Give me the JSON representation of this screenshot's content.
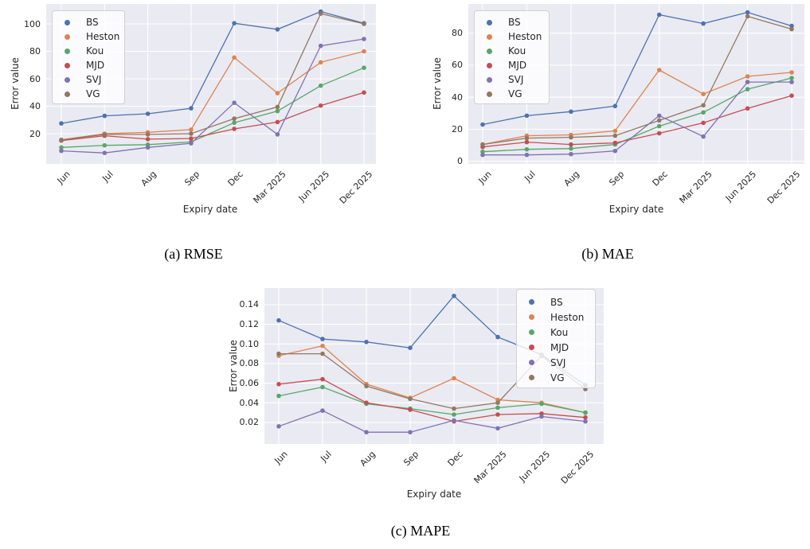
{
  "page": {
    "background_color": "#ffffff",
    "plot_background_color": "#eaeaf2",
    "grid_color": "#ffffff",
    "text_color": "#262626"
  },
  "chart_data": [
    {
      "id": "a",
      "type": "line",
      "caption": "(a) RMSE",
      "xlabel": "Expiry date",
      "ylabel": "Error value",
      "grid": true,
      "legend_position": "top-left",
      "categories": [
        "Jun",
        "Jul",
        "Aug",
        "Sep",
        "Dec",
        "Mar 2025",
        "Jun 2025",
        "Dec 2025"
      ],
      "yticks": [
        20,
        40,
        60,
        80,
        100
      ],
      "ytick_labels": [
        "20",
        "40",
        "60",
        "80",
        "100"
      ],
      "ylim": [
        -2,
        114.5
      ],
      "series": [
        {
          "name": "BS",
          "color": "#4C72B0",
          "values": [
            27.5,
            33,
            34.5,
            38.5,
            100.5,
            96,
            109,
            100.5
          ]
        },
        {
          "name": "Heston",
          "color": "#DD8452",
          "values": [
            15.5,
            20,
            21,
            23,
            75.5,
            49.5,
            72,
            80
          ]
        },
        {
          "name": "Kou",
          "color": "#55A868",
          "values": [
            10,
            11.5,
            12,
            14,
            28,
            36.5,
            55,
            68
          ]
        },
        {
          "name": "MJD",
          "color": "#C44E52",
          "values": [
            15,
            18.5,
            16,
            16.5,
            23.5,
            28.5,
            40.5,
            50
          ]
        },
        {
          "name": "SVJ",
          "color": "#8172B3",
          "values": [
            7.5,
            6,
            10,
            13,
            42.5,
            19.5,
            84,
            89
          ]
        },
        {
          "name": "VG",
          "color": "#937860",
          "values": [
            15.5,
            19.5,
            19.5,
            20,
            31,
            39.5,
            107.5,
            100
          ]
        }
      ]
    },
    {
      "id": "b",
      "type": "line",
      "caption": "(b) MAE",
      "xlabel": "Expiry date",
      "ylabel": "Error value",
      "grid": true,
      "legend_position": "top-left",
      "categories": [
        "Jun",
        "Jul",
        "Aug",
        "Sep",
        "Dec",
        "Mar 2025",
        "Jun 2025",
        "Dec 2025"
      ],
      "yticks": [
        0,
        20,
        40,
        60,
        80
      ],
      "ytick_labels": [
        "0",
        "20",
        "40",
        "60",
        "80"
      ],
      "ylim": [
        -1.6,
        98.2
      ],
      "series": [
        {
          "name": "BS",
          "color": "#4C72B0",
          "values": [
            23,
            28.5,
            31,
            34.5,
            91.5,
            86,
            93,
            84.5
          ]
        },
        {
          "name": "Heston",
          "color": "#DD8452",
          "values": [
            10.5,
            16,
            16.5,
            19,
            57,
            42,
            53,
            55.5
          ]
        },
        {
          "name": "Kou",
          "color": "#55A868",
          "values": [
            6,
            7.5,
            8,
            10.5,
            22,
            30.5,
            45,
            52
          ]
        },
        {
          "name": "MJD",
          "color": "#C44E52",
          "values": [
            9,
            12,
            10.5,
            11.5,
            17.5,
            24,
            33,
            41
          ]
        },
        {
          "name": "SVJ",
          "color": "#8172B3",
          "values": [
            4,
            4,
            4.5,
            6.5,
            28.5,
            15.5,
            49.5,
            49.5
          ]
        },
        {
          "name": "VG",
          "color": "#937860",
          "values": [
            10.5,
            14.5,
            15,
            16,
            25.5,
            35,
            90.5,
            82.5
          ]
        }
      ]
    },
    {
      "id": "c",
      "type": "line",
      "caption": "(c) MAPE",
      "xlabel": "Expiry date",
      "ylabel": "Error value",
      "grid": true,
      "legend_position": "top-right",
      "categories": [
        "Jun",
        "Jul",
        "Aug",
        "Sep",
        "Dec",
        "Mar 2025",
        "Jun 2025",
        "Dec 2025"
      ],
      "yticks": [
        0.02,
        0.04,
        0.06,
        0.08,
        0.1,
        0.12,
        0.14
      ],
      "ytick_labels": [
        "0.02",
        "0.04",
        "0.06",
        "0.08",
        "0.10",
        "0.12",
        "0.14"
      ],
      "ylim": [
        -0.002,
        0.157
      ],
      "series": [
        {
          "name": "BS",
          "color": "#4C72B0",
          "values": [
            0.124,
            0.105,
            0.102,
            0.096,
            0.149,
            0.107,
            0.089,
            0.058
          ]
        },
        {
          "name": "Heston",
          "color": "#DD8452",
          "values": [
            0.088,
            0.098,
            0.059,
            0.045,
            0.065,
            0.043,
            0.04,
            0.03
          ]
        },
        {
          "name": "Kou",
          "color": "#55A868",
          "values": [
            0.047,
            0.056,
            0.039,
            0.034,
            0.028,
            0.035,
            0.039,
            0.03
          ]
        },
        {
          "name": "MJD",
          "color": "#C44E52",
          "values": [
            0.059,
            0.064,
            0.04,
            0.033,
            0.021,
            0.028,
            0.029,
            0.025
          ]
        },
        {
          "name": "SVJ",
          "color": "#8172B3",
          "values": [
            0.016,
            0.032,
            0.01,
            0.01,
            0.022,
            0.014,
            0.026,
            0.021
          ]
        },
        {
          "name": "VG",
          "color": "#937860",
          "values": [
            0.09,
            0.09,
            0.057,
            0.044,
            0.034,
            0.04,
            0.088,
            0.054
          ]
        }
      ]
    }
  ]
}
